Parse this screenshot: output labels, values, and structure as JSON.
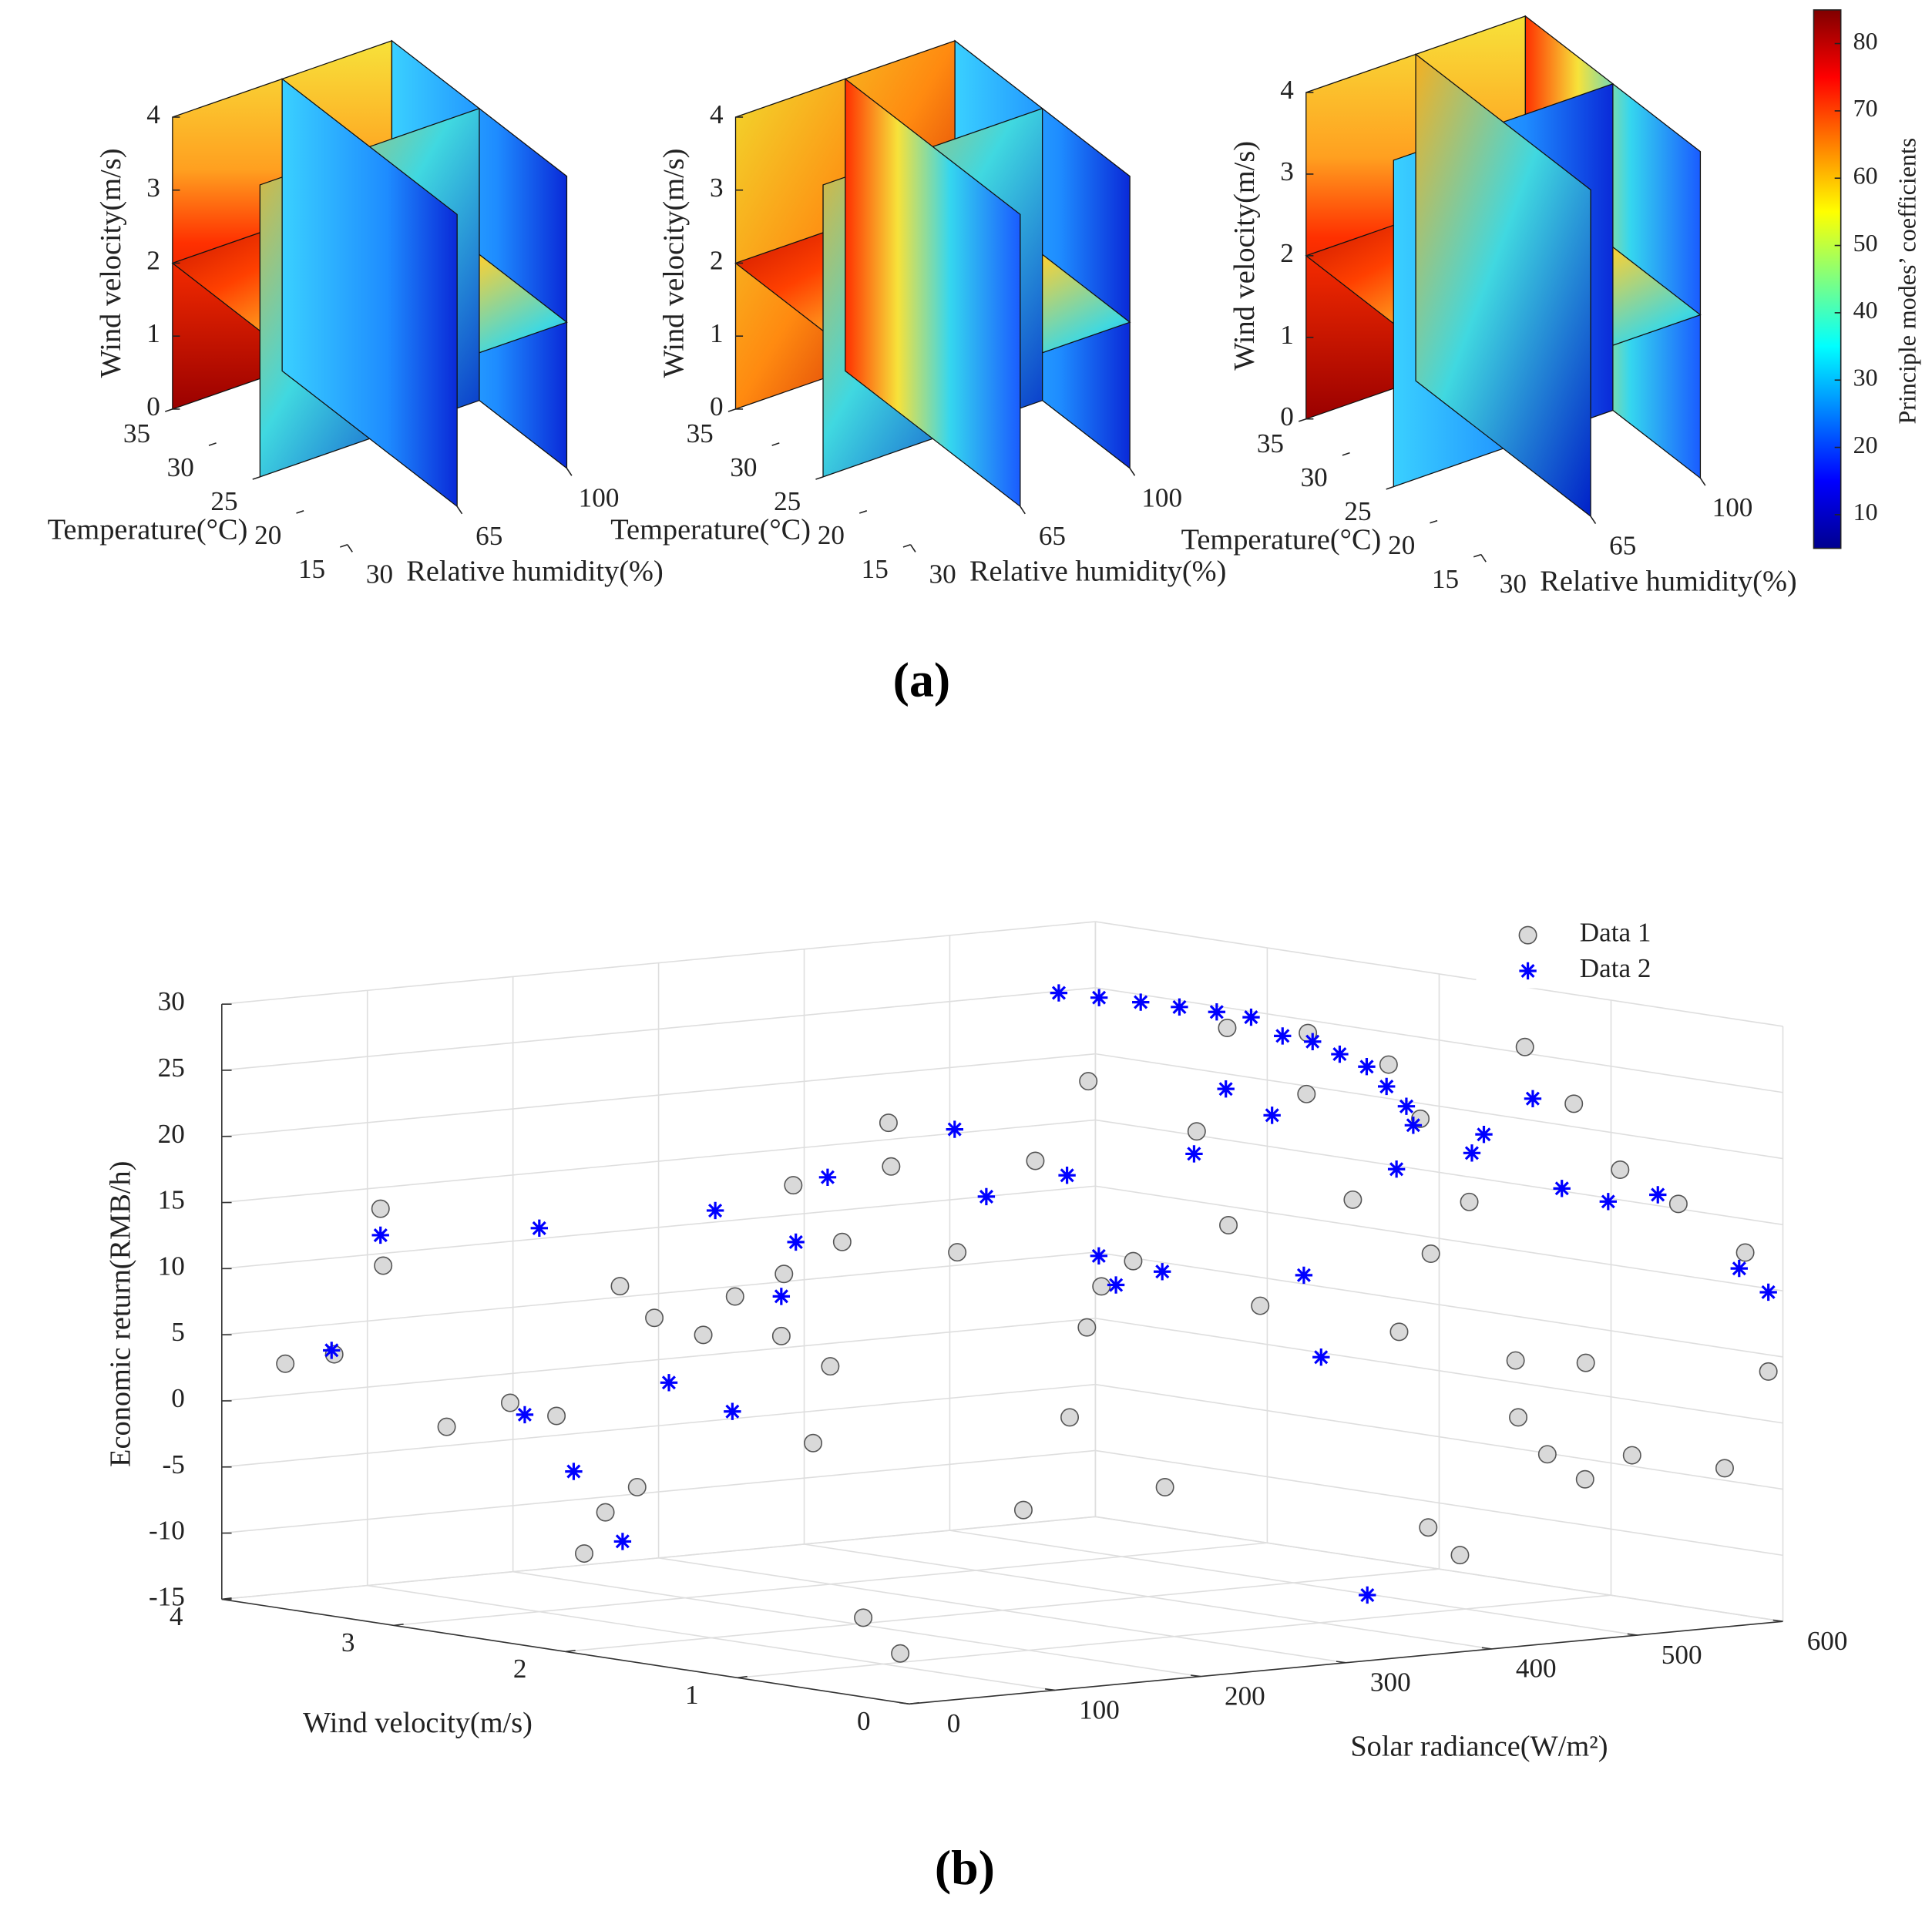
{
  "captions": [
    "(a)",
    "(b)"
  ],
  "chart_data": [
    {
      "type": "slice3d",
      "xlabel": "Temperature(°C)",
      "ylabel": "Relative humidity(%)",
      "zlabel": "Wind velocity(m/s)",
      "xlim": [
        15,
        35
      ],
      "xticks": [
        15,
        20,
        25,
        30,
        35
      ],
      "ylim": [
        30,
        100
      ],
      "yticks": [
        30,
        65,
        100
      ],
      "zlim": [
        0,
        4
      ],
      "zticks": [
        0,
        1,
        2,
        3,
        4
      ]
    },
    {
      "type": "slice3d",
      "xlabel": "Temperature(°C)",
      "ylabel": "Relative humidity(%)",
      "zlabel": "Wind velocity(m/s)",
      "xlim": [
        15,
        35
      ],
      "xticks": [
        15,
        20,
        25,
        30,
        35
      ],
      "ylim": [
        30,
        100
      ],
      "yticks": [
        30,
        65,
        100
      ],
      "zlim": [
        0,
        4
      ],
      "zticks": [
        0,
        1,
        2,
        3,
        4
      ]
    },
    {
      "type": "slice3d",
      "xlabel": "Temperature(°C)",
      "ylabel": "Relative humidity(%)",
      "zlabel": "Wind velocity(m/s)",
      "xlim": [
        15,
        35
      ],
      "xticks": [
        15,
        20,
        25,
        30,
        35
      ],
      "ylim": [
        30,
        100
      ],
      "yticks": [
        30,
        65,
        100
      ],
      "zlim": [
        0,
        4
      ],
      "zticks": [
        0,
        1,
        2,
        3,
        4
      ],
      "colorbar": {
        "label": "Principle modes’ coefficients",
        "lim": [
          5,
          85
        ],
        "ticks": [
          10,
          20,
          30,
          40,
          50,
          60,
          70,
          80
        ]
      }
    },
    {
      "type": "scatter3d",
      "xlabel": "Wind velocity(m/s)",
      "ylabel": "Solar radiance(W/m²)",
      "zlabel": "Economic return(RMB/h)",
      "xlim": [
        0,
        4
      ],
      "xticks": [
        0,
        1,
        2,
        3,
        4
      ],
      "ylim": [
        0,
        600
      ],
      "yticks": [
        0,
        100,
        200,
        300,
        400,
        500,
        600
      ],
      "zlim": [
        -15,
        30
      ],
      "zticks": [
        -15,
        -10,
        -5,
        0,
        5,
        10,
        15,
        20,
        25,
        30
      ],
      "grid": true,
      "legend": "upper right",
      "series": [
        {
          "name": "Data 1",
          "marker": "circle",
          "color": "#d9d9d9",
          "x": [
            3.8,
            3.6,
            3.2,
            3.0,
            2.9,
            3.4,
            3.5,
            2.7,
            2.6,
            2.5,
            2.7,
            2.3,
            2.2,
            2.0,
            2.1,
            1.9,
            2.0,
            2.2,
            2.0,
            1.8,
            1.9,
            1.5,
            1.2,
            1.3,
            1.0,
            1.1,
            1.0,
            0.9,
            0.8,
            0.7,
            0.6,
            0.5,
            1.5,
            0.4,
            0.3,
            0.2,
            0.1,
            0.2,
            0.1,
            0.6,
            1.2,
            0.9,
            0.5,
            0.3,
            0.2,
            0.1,
            0.05,
            0.1,
            0.2,
            0.0,
            0.05,
            0.0,
            0.1,
            0.4,
            0.2,
            0.3,
            0.1,
            2.4,
            1.2,
            0.9
          ],
          "y": [
            20,
            30,
            60,
            80,
            100,
            40,
            50,
            110,
            120,
            120,
            120,
            130,
            140,
            150,
            160,
            170,
            170,
            180,
            190,
            200,
            210,
            210,
            220,
            240,
            240,
            240,
            250,
            260,
            270,
            280,
            290,
            300,
            300,
            320,
            340,
            360,
            370,
            380,
            390,
            400,
            360,
            380,
            410,
            420,
            440,
            450,
            470,
            500,
            520,
            560,
            580,
            590,
            540,
            470,
            480,
            500,
            430,
            60,
            110,
            100
          ],
          "z": [
            3,
            4,
            -1,
            1,
            0,
            11,
            15,
            -7,
            -5,
            8,
            10,
            7,
            10,
            12,
            7,
            5,
            -1,
            18,
            14,
            20,
            23,
            14,
            -5,
            21,
            9,
            2,
            12,
            14,
            -3,
            24,
            17,
            11,
            26,
            27,
            19,
            9,
            15,
            -6,
            -8,
            28,
            30,
            30,
            24,
            18,
            6,
            -1,
            -3,
            20,
            -2,
            -3,
            13,
            4,
            17,
            29,
            25,
            5,
            2,
            -9,
            -12,
            -14
          ]
        },
        {
          "name": "Data 2",
          "marker": "asterisk",
          "color": "#0000ff",
          "x": [
            2.4,
            2.2,
            2.0,
            1.8,
            1.6,
            1.4,
            1.2,
            1.0,
            0.8,
            0.6,
            0.4,
            0.2,
            0.05,
            3.5,
            3.7,
            3.0,
            3.0,
            2.8,
            2.6,
            2.5,
            2.3,
            2.4,
            2.1,
            2.1,
            2.0,
            1.6,
            1.5,
            1.2,
            1.1,
            1.0,
            0.9,
            0.8,
            0.7,
            0.6,
            0.5,
            0.4,
            0.3,
            0.3,
            0.2,
            0.1,
            0.3,
            0.1,
            0.0,
            0.05,
            0.0,
            0.0
          ],
          "y": [
            386,
            390,
            395,
            398,
            400,
            400,
            398,
            395,
            390,
            385,
            375,
            365,
            352,
            50,
            40,
            90,
            100,
            100,
            110,
            130,
            150,
            150,
            160,
            170,
            180,
            220,
            230,
            250,
            260,
            260,
            280,
            290,
            300,
            320,
            330,
            330,
            350,
            370,
            410,
            440,
            430,
            460,
            480,
            520,
            570,
            590
          ],
          "z": [
            30,
            30,
            30,
            30,
            30,
            30,
            29,
            29,
            28.5,
            28,
            27,
            26,
            25,
            13,
            4,
            0,
            14,
            -4,
            -9,
            3,
            1,
            16,
            10,
            14,
            19,
            23,
            18,
            20,
            14,
            12,
            13,
            22,
            27,
            25,
            13,
            7,
            -11,
            21,
            22,
            26,
            23,
            19,
            18,
            18,
            12,
            10
          ]
        }
      ]
    }
  ]
}
